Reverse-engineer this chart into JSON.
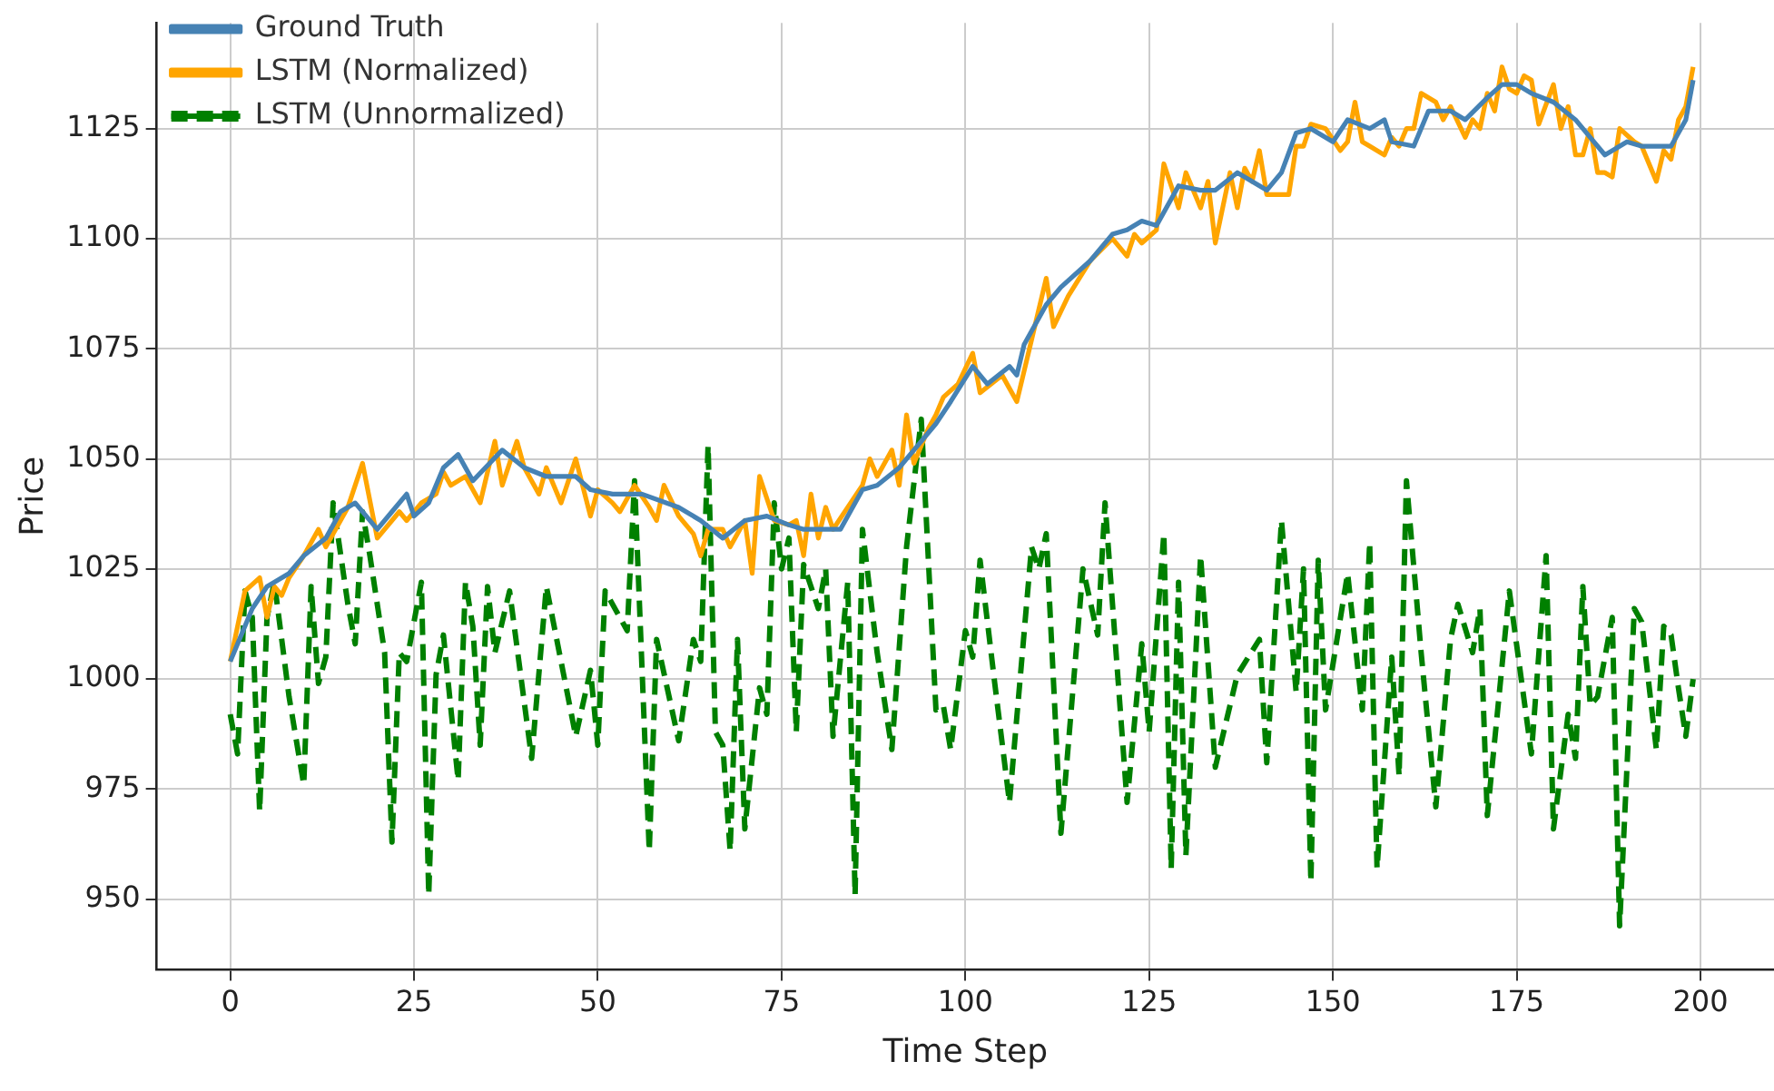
{
  "chart_data": {
    "type": "line",
    "xlabel": "Time Step",
    "ylabel": "Price",
    "xlim": [
      -10,
      210
    ],
    "ylim": [
      934,
      1149
    ],
    "xticks": [
      0,
      25,
      50,
      75,
      100,
      125,
      150,
      175,
      200
    ],
    "yticks": [
      950,
      975,
      1000,
      1025,
      1050,
      1075,
      1100,
      1125
    ],
    "grid": true,
    "legend": "top left",
    "marker": "none",
    "series": [
      {
        "name": "Ground Truth",
        "color": "#4682b4",
        "line_style": "solid",
        "x": [
          0,
          3,
          5,
          8,
          10,
          13,
          15,
          17,
          20,
          22,
          24,
          25,
          27,
          29,
          31,
          33,
          37,
          40,
          43,
          47,
          49,
          52,
          56,
          61,
          64,
          67,
          70,
          73,
          76,
          78,
          81,
          83,
          86,
          88,
          91,
          93,
          96,
          98,
          101,
          103,
          106,
          107,
          108,
          111,
          113,
          117,
          120,
          122,
          124,
          126,
          129,
          132,
          134,
          137,
          141,
          143,
          145,
          147,
          150,
          152,
          155,
          157,
          158,
          161,
          163,
          166,
          168,
          171,
          173,
          175,
          177,
          180,
          183,
          185,
          187,
          190,
          192,
          194,
          196,
          198,
          199
        ],
        "values": [
          1004,
          1016,
          1021,
          1024,
          1028,
          1032,
          1038,
          1040,
          1034,
          1038,
          1042,
          1037,
          1040,
          1048,
          1051,
          1045,
          1052,
          1048,
          1046,
          1046,
          1043,
          1042,
          1042,
          1039,
          1036,
          1032,
          1036,
          1037,
          1035,
          1034,
          1034,
          1034,
          1043,
          1044,
          1048,
          1052,
          1058,
          1063,
          1071,
          1067,
          1071,
          1069,
          1076,
          1085,
          1089,
          1095,
          1101,
          1102,
          1104,
          1103,
          1112,
          1111,
          1111,
          1115,
          1111,
          1115,
          1124,
          1125,
          1122,
          1127,
          1125,
          1127,
          1122,
          1121,
          1129,
          1129,
          1127,
          1132,
          1135,
          1135,
          1133,
          1131,
          1127,
          1123,
          1119,
          1122,
          1121,
          1121,
          1121,
          1127,
          1136
        ]
      },
      {
        "name": "LSTM (Normalized)",
        "color": "#ffa500",
        "line_style": "solid",
        "x": [
          0,
          2,
          4,
          5,
          6,
          7,
          8,
          10,
          12,
          13,
          16,
          18,
          20,
          23,
          24,
          26,
          28,
          29,
          30,
          32,
          34,
          36,
          37,
          39,
          40,
          42,
          43,
          45,
          47,
          49,
          50,
          52,
          53,
          55,
          57,
          58,
          59,
          61,
          63,
          64,
          65,
          67,
          68,
          70,
          71,
          72,
          74,
          76,
          77,
          78,
          79,
          80,
          81,
          82,
          84,
          86,
          87,
          88,
          90,
          91,
          92,
          93,
          95,
          96,
          97,
          99,
          101,
          102,
          105,
          107,
          109,
          111,
          112,
          114,
          117,
          120,
          122,
          123,
          124,
          126,
          127,
          129,
          130,
          132,
          133,
          134,
          136,
          137,
          138,
          139,
          140,
          141,
          144,
          145,
          146,
          147,
          149,
          151,
          152,
          153,
          154,
          155,
          157,
          158,
          159,
          160,
          161,
          162,
          164,
          165,
          166,
          168,
          169,
          170,
          171,
          172,
          173,
          174,
          175,
          176,
          177,
          178,
          180,
          181,
          182,
          183,
          184,
          185,
          186,
          187,
          188,
          189,
          191,
          192,
          194,
          195,
          196,
          197,
          198,
          199
        ],
        "values": [
          1004,
          1020,
          1023,
          1014,
          1021,
          1019,
          1023,
          1028,
          1034,
          1030,
          1039,
          1049,
          1032,
          1038,
          1036,
          1040,
          1042,
          1047,
          1044,
          1046,
          1040,
          1054,
          1044,
          1054,
          1048,
          1042,
          1048,
          1040,
          1050,
          1037,
          1043,
          1040,
          1038,
          1044,
          1039,
          1036,
          1044,
          1037,
          1033,
          1028,
          1034,
          1034,
          1030,
          1036,
          1024,
          1046,
          1036,
          1035,
          1036,
          1028,
          1042,
          1032,
          1039,
          1034,
          1039,
          1044,
          1050,
          1046,
          1052,
          1044,
          1060,
          1049,
          1057,
          1060,
          1064,
          1067,
          1074,
          1065,
          1069,
          1063,
          1077,
          1091,
          1080,
          1087,
          1095,
          1100,
          1096,
          1101,
          1099,
          1102,
          1117,
          1107,
          1115,
          1107,
          1113,
          1099,
          1115,
          1107,
          1116,
          1113,
          1120,
          1110,
          1110,
          1121,
          1121,
          1126,
          1125,
          1120,
          1122,
          1131,
          1122,
          1121,
          1119,
          1123,
          1121,
          1125,
          1125,
          1133,
          1131,
          1127,
          1130,
          1123,
          1127,
          1125,
          1133,
          1129,
          1139,
          1134,
          1133,
          1137,
          1136,
          1126,
          1135,
          1125,
          1130,
          1119,
          1119,
          1125,
          1115,
          1115,
          1114,
          1125,
          1122,
          1121,
          1113,
          1120,
          1118,
          1127,
          1130,
          1139
        ]
      },
      {
        "name": "LSTM (Unnormalized)",
        "color": "#008000",
        "line_style": "dashed",
        "x": [
          0,
          1,
          2,
          3,
          4,
          5,
          6,
          7,
          8,
          10,
          11,
          12,
          13,
          14,
          16,
          17,
          18,
          19,
          21,
          22,
          23,
          24,
          26,
          27,
          28,
          29,
          31,
          32,
          33,
          34,
          35,
          36,
          38,
          41,
          43,
          45,
          47,
          49,
          50,
          51,
          54,
          55,
          57,
          58,
          61,
          63,
          64,
          65,
          66,
          67,
          68,
          69,
          70,
          72,
          73,
          74,
          75,
          76,
          77,
          78,
          80,
          81,
          82,
          84,
          85,
          86,
          88,
          90,
          92,
          94,
          96,
          97,
          98,
          100,
          101,
          102,
          104,
          106,
          109,
          110,
          111,
          113,
          116,
          118,
          119,
          122,
          124,
          125,
          127,
          128,
          129,
          130,
          132,
          134,
          137,
          140,
          141,
          143,
          145,
          146,
          147,
          148,
          149,
          152,
          154,
          155,
          156,
          158,
          159,
          160,
          162,
          164,
          166,
          167,
          169,
          170,
          171,
          174,
          177,
          179,
          180,
          182,
          183,
          184,
          185,
          186,
          188,
          189,
          191,
          192,
          194,
          195,
          196,
          197,
          198,
          199
        ],
        "values": [
          992,
          983,
          1020,
          1014,
          970,
          1014,
          1022,
          1009,
          996,
          976,
          1021,
          999,
          1005,
          1040,
          1017,
          1008,
          1038,
          1028,
          1006,
          963,
          1006,
          1004,
          1022,
          951,
          1001,
          1010,
          977,
          1022,
          1012,
          985,
          1021,
          1006,
          1020,
          982,
          1021,
          1004,
          987,
          1002,
          985,
          1020,
          1011,
          1045,
          961,
          1009,
          986,
          1009,
          1004,
          1053,
          988,
          985,
          961,
          1009,
          966,
          998,
          992,
          1040,
          1025,
          1032,
          988,
          1026,
          1016,
          1025,
          987,
          1022,
          951,
          1034,
          1006,
          984,
          1030,
          1059,
          993,
          994,
          984,
          1011,
          1005,
          1027,
          999,
          972,
          1030,
          1025,
          1033,
          965,
          1025,
          1010,
          1040,
          972,
          1008,
          988,
          1033,
          957,
          1022,
          960,
          1028,
          980,
          1001,
          1009,
          981,
          1036,
          997,
          1025,
          954,
          1027,
          993,
          1024,
          993,
          1031,
          957,
          1005,
          978,
          1045,
          1006,
          971,
          1009,
          1017,
          1006,
          1016,
          969,
          1020,
          983,
          1028,
          966,
          992,
          982,
          1021,
          994,
          996,
          1014,
          944,
          1016,
          1013,
          984,
          1012,
          1010,
          998,
          987,
          1000
        ]
      }
    ]
  }
}
